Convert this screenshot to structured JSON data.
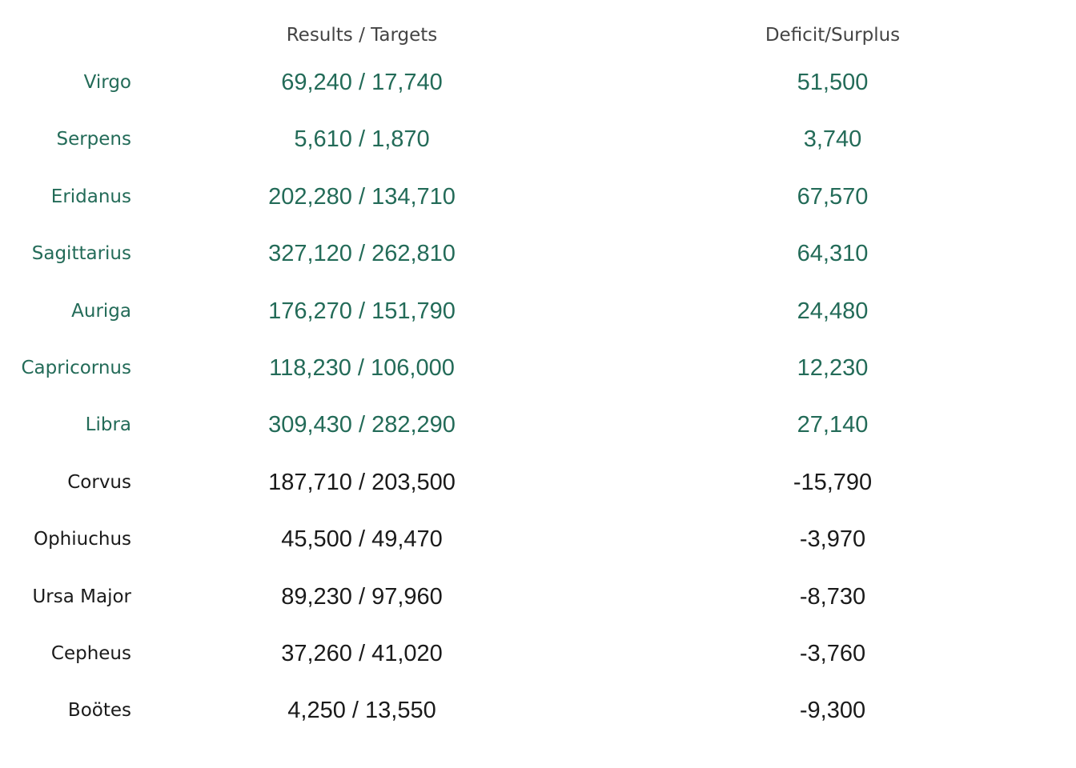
{
  "colors": {
    "surplus": "#236b58",
    "deficit": "#1a1a1a",
    "header": "#444444",
    "background": "#ffffff"
  },
  "chart_data": {
    "type": "table",
    "headers": {
      "results_targets": "Results / Targets",
      "deficit_surplus": "Deficit/Surplus"
    },
    "rows": [
      {
        "name": "Virgo",
        "results": 69240,
        "target": 17740,
        "results_label": "69,240 / 17,740",
        "diff": 51500,
        "diff_label": "51,500",
        "status": "surplus"
      },
      {
        "name": "Serpens",
        "results": 5610,
        "target": 1870,
        "results_label": "5,610 / 1,870",
        "diff": 3740,
        "diff_label": "3,740",
        "status": "surplus"
      },
      {
        "name": "Eridanus",
        "results": 202280,
        "target": 134710,
        "results_label": "202,280 / 134,710",
        "diff": 67570,
        "diff_label": "67,570",
        "status": "surplus"
      },
      {
        "name": "Sagittarius",
        "results": 327120,
        "target": 262810,
        "results_label": "327,120 / 262,810",
        "diff": 64310,
        "diff_label": "64,310",
        "status": "surplus"
      },
      {
        "name": "Auriga",
        "results": 176270,
        "target": 151790,
        "results_label": "176,270 / 151,790",
        "diff": 24480,
        "diff_label": "24,480",
        "status": "surplus"
      },
      {
        "name": "Capricornus",
        "results": 118230,
        "target": 106000,
        "results_label": "118,230 / 106,000",
        "diff": 12230,
        "diff_label": "12,230",
        "status": "surplus"
      },
      {
        "name": "Libra",
        "results": 309430,
        "target": 282290,
        "results_label": "309,430 / 282,290",
        "diff": 27140,
        "diff_label": "27,140",
        "status": "surplus"
      },
      {
        "name": "Corvus",
        "results": 187710,
        "target": 203500,
        "results_label": "187,710 / 203,500",
        "diff": -15790,
        "diff_label": "-15,790",
        "status": "deficit"
      },
      {
        "name": "Ophiuchus",
        "results": 45500,
        "target": 49470,
        "results_label": "45,500 / 49,470",
        "diff": -3970,
        "diff_label": "-3,970",
        "status": "deficit"
      },
      {
        "name": "Ursa Major",
        "results": 89230,
        "target": 97960,
        "results_label": "89,230 / 97,960",
        "diff": -8730,
        "diff_label": "-8,730",
        "status": "deficit"
      },
      {
        "name": "Cepheus",
        "results": 37260,
        "target": 41020,
        "results_label": "37,260 / 41,020",
        "diff": -3760,
        "diff_label": "-3,760",
        "status": "deficit"
      },
      {
        "name": "Boötes",
        "results": 4250,
        "target": 13550,
        "results_label": "4,250 / 13,550",
        "diff": -9300,
        "diff_label": "-9,300",
        "status": "deficit"
      }
    ]
  }
}
